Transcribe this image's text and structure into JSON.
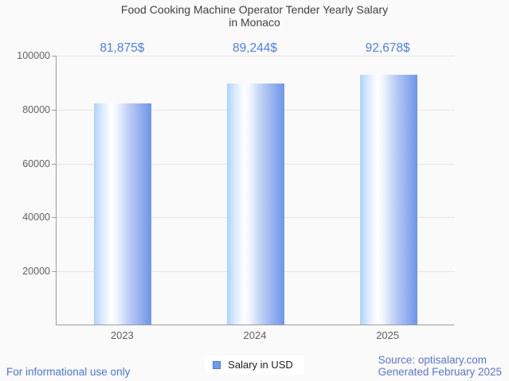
{
  "title": {
    "line1": "Food Cooking Machine Operator Tender Yearly Salary",
    "line2": "in Monaco"
  },
  "chart_data": {
    "type": "bar",
    "title": "Food Cooking Machine Operator Tender Yearly Salary in Monaco",
    "categories": [
      "2023",
      "2024",
      "2025"
    ],
    "series": [
      {
        "name": "Salary in USD",
        "values": [
          81875,
          89244,
          92678
        ]
      }
    ],
    "value_labels": [
      "81,875$",
      "89,244$",
      "92,678$"
    ],
    "xlabel": "",
    "ylabel": "",
    "ylim": [
      0,
      100000
    ],
    "yticks": [
      20000,
      40000,
      60000,
      80000,
      100000
    ],
    "ytick_labels": [
      "20000",
      "40000",
      "60000",
      "80000",
      "100000"
    ],
    "grid": "horizontal",
    "legend_position": "bottom-center",
    "bar_color_gradient": [
      "#b0d3fa",
      "#ffffff",
      "#6c96e9"
    ]
  },
  "legend": {
    "label": "Salary in USD",
    "marker_fill": "#6d9eeb",
    "marker_border": "#4a79da"
  },
  "footer": {
    "left": "For informational use only",
    "source": "Source: optisalary.com",
    "generated": "Generated February 2025"
  },
  "colors": {
    "background": "#fafafa",
    "value_label": "#4d7fe6",
    "footer_left": "#4b74dd",
    "footer_right": "#5b77cf",
    "gridline": "#e4e4e4",
    "axis": "#9b9b9b",
    "title_text": "#404040"
  }
}
